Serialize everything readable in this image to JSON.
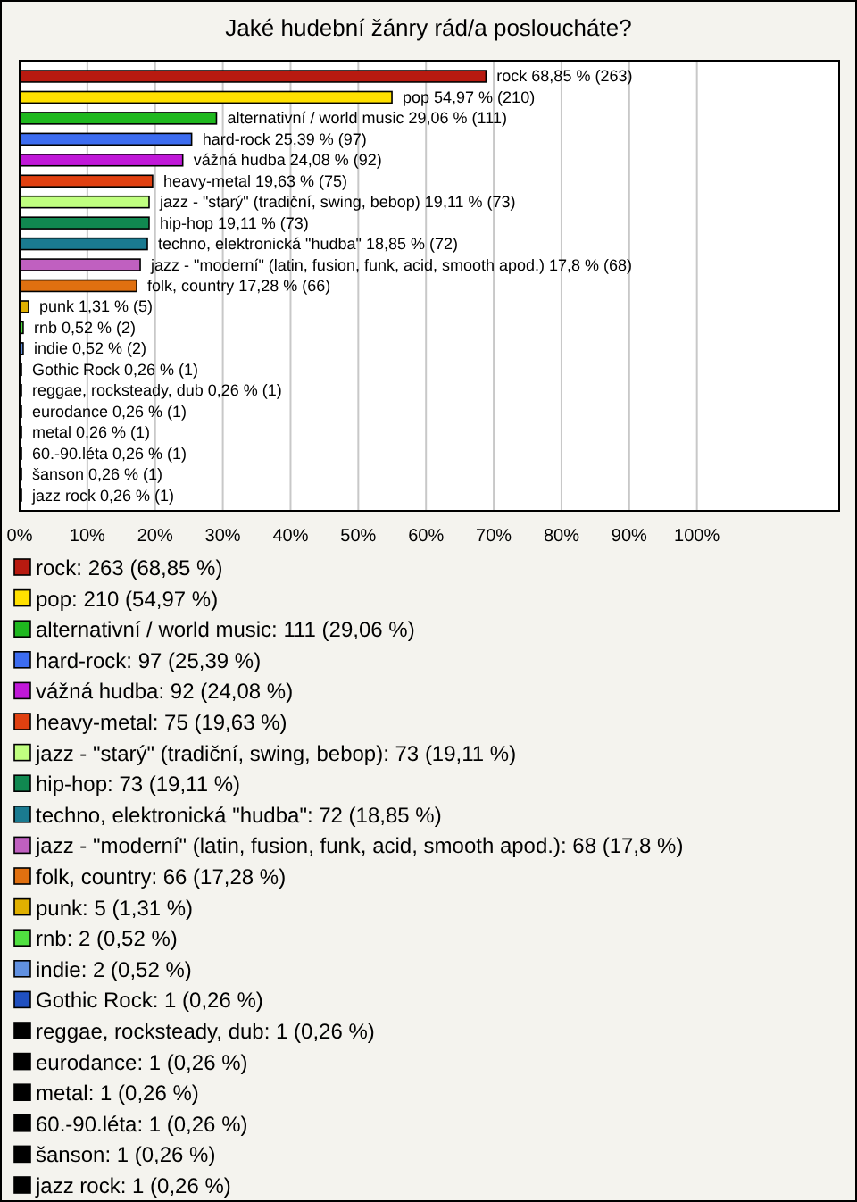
{
  "chart_data": {
    "type": "bar",
    "orientation": "horizontal",
    "title": "Jaké hudební žánry rád/a posloucháte?",
    "categories": [
      null,
      null,
      null,
      null,
      null,
      null,
      null,
      null,
      null,
      null,
      null,
      null,
      null,
      null,
      null,
      null,
      null,
      null,
      null,
      null,
      null
    ],
    "values": [
      68.85,
      54.97,
      29.06,
      25.39,
      24.08,
      19.63,
      19.11,
      19.11,
      18.85,
      17.8,
      17.28,
      1.31,
      0.52,
      0.52,
      0.26,
      0.26,
      0.26,
      0.26,
      0.26,
      0.26,
      0.26
    ],
    "value_labels": [
      "rock 68,85 % (263)",
      "pop 54,97 % (210)",
      "alternativní / world music 29,06 % (111)",
      "hard-rock 25,39 % (97)",
      "vážná hudba 24,08 % (92)",
      "heavy-metal 19,63 % (75)",
      "jazz - \"starý\" (tradiční, swing, bebop) 19,11 % (73)",
      "hip-hop 19,11 % (73)",
      "techno, elektronická \"hudba\" 18,85 % (72)",
      "jazz - \"moderní\" (latin, fusion, funk, acid, smooth apod.) 17,8 % (68)",
      "folk, country 17,28 % (66)",
      "punk 1,31 % (5)",
      "rnb 0,52 % (2)",
      "indie 0,52 % (2)",
      "Gothic Rock 0,26 % (1)",
      "reggae, rocksteady, dub 0,26 % (1)",
      "eurodance 0,26 % (1)",
      "metal 0,26 % (1)",
      "60.-90.léta 0,26 % (1)",
      "šanson 0,26 % (1)",
      "jazz rock 0,26 % (1)"
    ],
    "colors": [
      "#b81a10",
      "#ffe000",
      "#1fb81f",
      "#3c6cf0",
      "#c018d8",
      "#e04010",
      "#c0ff80",
      "#108850",
      "#1a7a90",
      "#c060c0",
      "#e07010",
      "#e0b000",
      "#50e040",
      "#6090e0",
      "#2050c0",
      "#000000",
      "#000000",
      "#000000",
      "#000000",
      "#000000",
      "#000000"
    ],
    "annotations": [
      "rock: 263 (68,85 %)",
      "pop: 210 (54,97 %)",
      "alternativní / world music: 111 (29,06 %)",
      "hard-rock: 97 (25,39 %)",
      "vážná hudba: 92 (24,08 %)",
      "heavy-metal: 75 (19,63 %)",
      "jazz - \"starý\" (tradiční, swing, bebop): 73 (19,11 %)",
      "hip-hop: 73 (19,11 %)",
      "techno, elektronická \"hudba\": 72 (18,85 %)",
      "jazz - \"moderní\" (latin, fusion, funk, acid, smooth apod.): 68 (17,8 %)",
      "folk, country: 66 (17,28 %)",
      "punk: 5 (1,31 %)",
      "rnb: 2 (0,52 %)",
      "indie: 2 (0,52 %)",
      "Gothic Rock: 1 (0,26 %)",
      "reggae, rocksteady, dub: 1 (0,26 %)",
      "eurodance: 1 (0,26 %)",
      "metal: 1 (0,26 %)",
      "60.-90.léta: 1 (0,26 %)",
      "šanson: 1 (0,26 %)",
      "jazz rock: 1 (0,26 %)"
    ],
    "xlim": [
      0,
      121
    ],
    "xticks": [
      {
        "value": 0,
        "label": "0%"
      },
      {
        "value": 10,
        "label": "10%"
      },
      {
        "value": 20,
        "label": "20%"
      },
      {
        "value": 30,
        "label": "30%"
      },
      {
        "value": 40,
        "label": "40%"
      },
      {
        "value": 50,
        "label": "50%"
      },
      {
        "value": 60,
        "label": "60%"
      },
      {
        "value": 70,
        "label": "70%"
      },
      {
        "value": 80,
        "label": "80%"
      },
      {
        "value": 90,
        "label": "90%"
      },
      {
        "value": 100,
        "label": "100%"
      }
    ],
    "grid": "x"
  }
}
